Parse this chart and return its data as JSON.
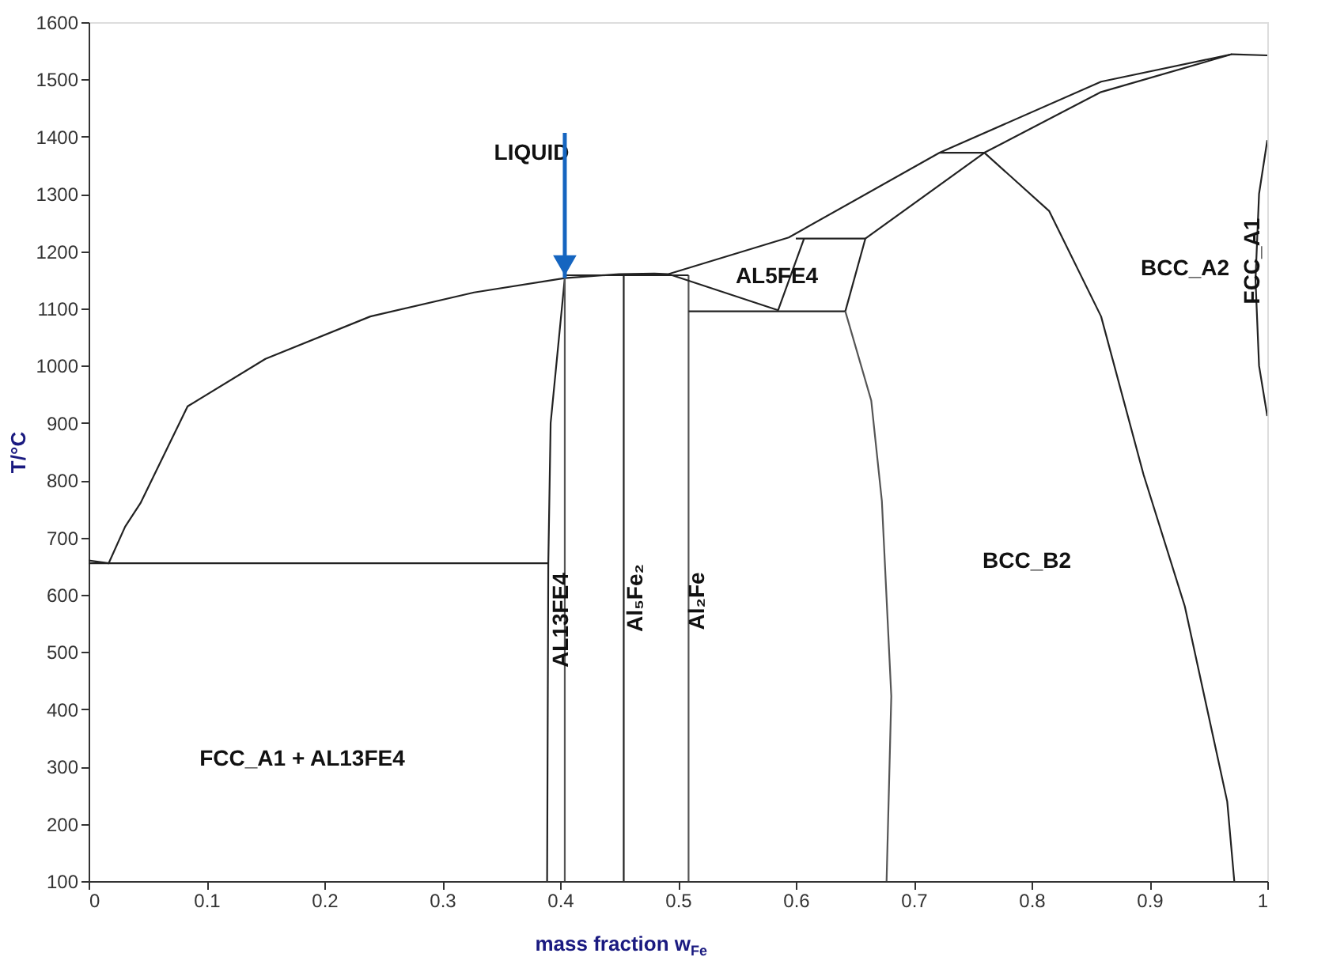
{
  "chart_data": {
    "type": "line",
    "xlabel": "mass fraction w$_{Fe}$",
    "ylabel": "T/°C",
    "xlim": [
      0,
      1
    ],
    "ylim": [
      100,
      1600
    ],
    "xticks": [
      0,
      0.1,
      0.2,
      0.3,
      0.4,
      0.5,
      0.6,
      0.7,
      0.8,
      0.9,
      1
    ],
    "yticks": [
      100,
      200,
      300,
      400,
      500,
      600,
      700,
      800,
      900,
      1000,
      1100,
      1200,
      1300,
      1400,
      1500,
      1600
    ],
    "grid": false,
    "legend": false,
    "marker": "none",
    "line_style": "solid",
    "series": [
      {
        "color": "#222222",
        "x": [
          0,
          0.017,
          0.031,
          0.044,
          0.084,
          0.15,
          0.239,
          0.327,
          0.404,
          0.45,
          0.48,
          0.492,
          0.594,
          0.722,
          0.859,
          0.97,
          1.0
        ],
        "values": [
          660,
          655,
          719,
          760,
          929,
          1012,
          1086,
          1128,
          1153,
          1160,
          1161,
          1160,
          1224,
          1372,
          1496,
          1544,
          1542
        ]
      },
      {
        "color": "#222222",
        "x": [
          0,
          0.39
        ],
        "values": [
          655,
          655
        ]
      },
      {
        "color": "#222222",
        "x": [
          0.389,
          0.39,
          0.392,
          0.404
        ],
        "values": [
          100,
          655,
          900,
          1153
        ]
      },
      {
        "color": "#555555",
        "x": [
          0.404,
          0.404
        ],
        "values": [
          100,
          1153
        ]
      },
      {
        "color": "#222222",
        "x": [
          0.454,
          0.454
        ],
        "values": [
          100,
          1158
        ]
      },
      {
        "color": "#555555",
        "x": [
          0.509,
          0.509
        ],
        "values": [
          100,
          1158
        ]
      },
      {
        "color": "#222222",
        "x": [
          0.404,
          0.509
        ],
        "values": [
          1158,
          1158
        ]
      },
      {
        "color": "#222222",
        "x": [
          0.6,
          0.659
        ],
        "values": [
          1222,
          1222
        ]
      },
      {
        "color": "#222222",
        "x": [
          0.659,
          0.76,
          0.859,
          0.97
        ],
        "values": [
          1222,
          1372,
          1478,
          1544
        ]
      },
      {
        "color": "#222222",
        "x": [
          0.722,
          0.76
        ],
        "values": [
          1372,
          1372
        ]
      },
      {
        "color": "#222222",
        "x": [
          0.492,
          0.585,
          0.607
        ],
        "values": [
          1160,
          1097,
          1222
        ]
      },
      {
        "color": "#222222",
        "x": [
          0.509,
          0.642
        ],
        "values": [
          1095,
          1095
        ]
      },
      {
        "color": "#222222",
        "x": [
          0.642,
          0.659
        ],
        "values": [
          1095,
          1222
        ]
      },
      {
        "color": "#555555",
        "x": [
          0.642,
          0.664,
          0.673,
          0.681,
          0.677
        ],
        "values": [
          1095,
          939,
          764,
          423,
          100
        ]
      },
      {
        "color": "#222222",
        "x": [
          0.76,
          0.815,
          0.859,
          0.895,
          0.93,
          0.966,
          0.972
        ],
        "values": [
          1372,
          1270,
          1086,
          810,
          580,
          239,
          100
        ]
      },
      {
        "color": "#222222",
        "x": [
          1.0,
          0.993,
          0.99,
          0.993,
          1.0
        ],
        "values": [
          1394,
          1300,
          1150,
          1000,
          912
        ]
      }
    ],
    "annotations": [
      {
        "text": "LIQUID",
        "x": 0.404,
        "y": 1153
      },
      "AL5FE4",
      "BCC_A2",
      "BCC_B2",
      "FCC_A1 + AL13FE4",
      "AL13FE4",
      "Al₅Fe₂",
      "Al₂Fe",
      "FCC_A1"
    ]
  }
}
